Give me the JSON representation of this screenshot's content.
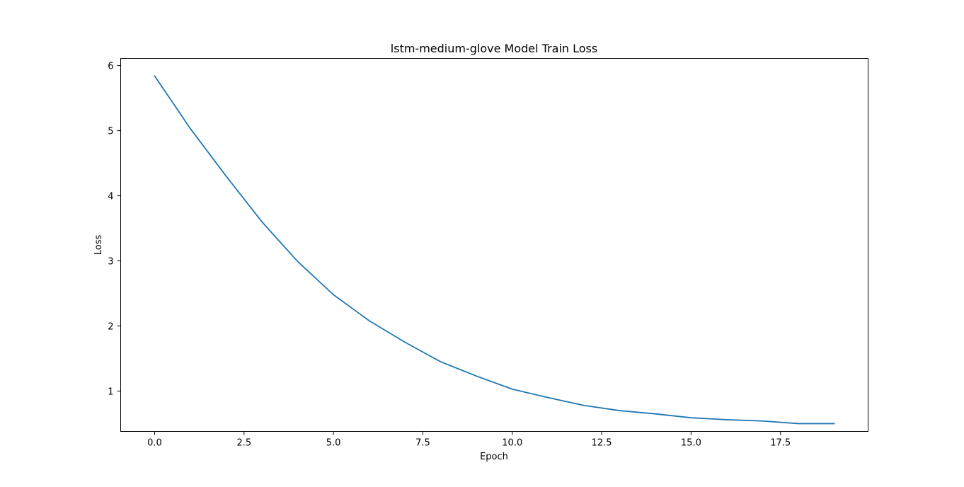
{
  "chart_data": {
    "type": "line",
    "title": "lstm-medium-glove Model Train Loss",
    "xlabel": "Epoch",
    "ylabel": "Loss",
    "xlim": [
      -0.95,
      19.95
    ],
    "ylim": [
      0.38,
      6.11
    ],
    "xticks": [
      0.0,
      2.5,
      5.0,
      7.5,
      10.0,
      12.5,
      15.0,
      17.5
    ],
    "xtick_labels": [
      "0.0",
      "2.5",
      "5.0",
      "7.5",
      "10.0",
      "12.5",
      "15.0",
      "17.5"
    ],
    "yticks": [
      1,
      2,
      3,
      4,
      5,
      6
    ],
    "ytick_labels": [
      "1",
      "2",
      "3",
      "4",
      "5",
      "6"
    ],
    "grid": false,
    "series": [
      {
        "color": "#1f77b4",
        "x": [
          0,
          1,
          2,
          3,
          4,
          5,
          6,
          7,
          8,
          9,
          10,
          11,
          12,
          13,
          14,
          15,
          16,
          17,
          18,
          19
        ],
        "y": [
          5.84,
          5.03,
          4.3,
          3.6,
          2.99,
          2.48,
          2.08,
          1.75,
          1.45,
          1.23,
          1.03,
          0.9,
          0.78,
          0.7,
          0.65,
          0.59,
          0.56,
          0.54,
          0.5,
          0.5
        ]
      }
    ]
  }
}
